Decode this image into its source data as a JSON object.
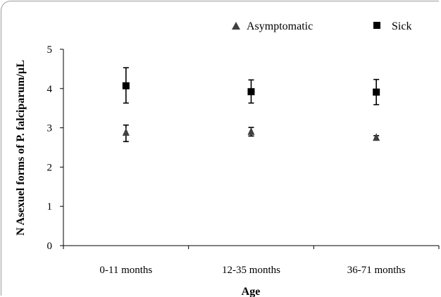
{
  "chart_data": {
    "type": "scatter",
    "title": "",
    "xlabel": "Age",
    "ylabel": "N Asexuel forms of P. falciparum/µL",
    "categories": [
      "0-11 months",
      "12-35 months",
      "36-71 months"
    ],
    "ylim": [
      0,
      5
    ],
    "yticks": [
      "0",
      "1",
      "2",
      "3",
      "4",
      "5"
    ],
    "grid": false,
    "legend_position": "top",
    "series": [
      {
        "name": "Asymptomatic",
        "marker": "triangle",
        "color": "#404040",
        "values": [
          2.87,
          2.89,
          2.74
        ],
        "error_low": [
          2.65,
          2.79,
          2.69
        ],
        "error_high": [
          3.07,
          3.01,
          2.8
        ]
      },
      {
        "name": "Sick",
        "marker": "square",
        "color": "#000000",
        "values": [
          4.07,
          3.92,
          3.91
        ],
        "error_low": [
          3.63,
          3.63,
          3.59
        ],
        "error_high": [
          4.53,
          4.22,
          4.23
        ]
      }
    ]
  }
}
